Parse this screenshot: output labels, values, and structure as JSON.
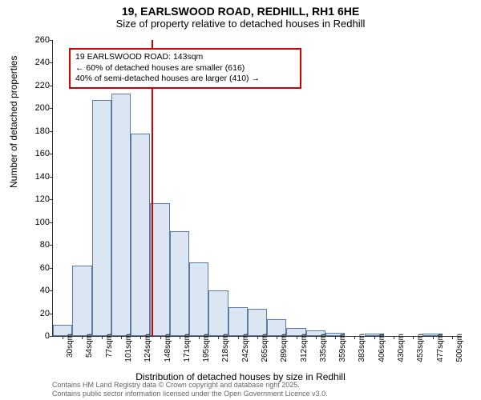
{
  "title": "19, EARLSWOOD ROAD, REDHILL, RH1 6HE",
  "subtitle": "Size of property relative to detached houses in Redhill",
  "ylabel": "Number of detached properties",
  "xlabel": "Distribution of detached houses by size in Redhill",
  "credits_line1": "Contains HM Land Registry data © Crown copyright and database right 2025.",
  "credits_line2": "Contains public sector information licensed under the Open Government Licence v3.0.",
  "chart": {
    "type": "histogram",
    "ylim": [
      0,
      260
    ],
    "ytick_step": 20,
    "categories": [
      "30sqm",
      "54sqm",
      "77sqm",
      "101sqm",
      "124sqm",
      "148sqm",
      "171sqm",
      "195sqm",
      "218sqm",
      "242sqm",
      "265sqm",
      "289sqm",
      "312sqm",
      "335sqm",
      "359sqm",
      "383sqm",
      "406sqm",
      "430sqm",
      "453sqm",
      "477sqm",
      "500sqm"
    ],
    "values": [
      10,
      62,
      207,
      213,
      178,
      117,
      92,
      65,
      40,
      25,
      24,
      15,
      7,
      5,
      3,
      0,
      2,
      0,
      0,
      2,
      0
    ],
    "bar_fill": "#dce6f2",
    "bar_stroke": "#5b7aa8",
    "background": "#ffffff",
    "marker_value": 143,
    "marker_x_range": [
      30,
      500
    ],
    "marker_color": "#cc0000",
    "info_box_border": "#cc0000",
    "info_line1": "19 EARLSWOOD ROAD: 143sqm",
    "info_line2": "← 60% of detached houses are smaller (616)",
    "info_line3": "40% of semi-detached houses are larger (410) →"
  }
}
